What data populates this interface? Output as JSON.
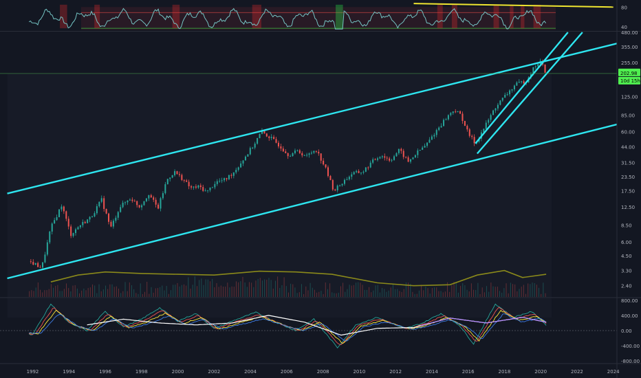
{
  "chart_data": {
    "type": "candlestick",
    "title": "",
    "colors": {
      "background": "#131722",
      "up": "#26a69a",
      "down": "#ef5350",
      "channel": "#2ee6f0",
      "trendline": "#f0e630",
      "price_line": "#4caf50",
      "price_tag": "#50f050",
      "volume_ma": "#8b8a1a",
      "rsi_line": "#74c4c4",
      "macd_signal": "#ffffff"
    },
    "x_axis": {
      "ticks": [
        "1992",
        "1994",
        "1996",
        "1998",
        "2000",
        "2002",
        "2004",
        "2006",
        "2008",
        "2010",
        "2012",
        "2014",
        "2016",
        "2018",
        "2020",
        "2022",
        "2024"
      ],
      "range": [
        1990.2,
        2024.2
      ]
    },
    "rsi_pane": {
      "ticks": [
        "80",
        "40"
      ],
      "overbought": 70,
      "oversold": 30,
      "ylim": [
        25,
        95
      ],
      "trendline": {
        "from": [
          2013.0,
          93
        ],
        "to": [
          2024.0,
          84
        ]
      }
    },
    "price_pane": {
      "scale": "log",
      "ylim": [
        1.9,
        480
      ],
      "ticks": [
        "480.00",
        "355.00",
        "255.00",
        "202.98",
        "125.00",
        "85.00",
        "60.00",
        "44.00",
        "31.50",
        "23.50",
        "17.50",
        "12.50",
        "8.50",
        "6.00",
        "4.50",
        "3.30",
        "2.40"
      ],
      "last_price": "202.98",
      "countdown": "10d 15h",
      "price_series": [
        [
          1991.8,
          4.0
        ],
        [
          1992.5,
          3.5
        ],
        [
          1993.0,
          8.0
        ],
        [
          1993.6,
          13.0
        ],
        [
          1994.1,
          7.0
        ],
        [
          1994.6,
          8.5
        ],
        [
          1995.2,
          10.0
        ],
        [
          1995.8,
          14.5
        ],
        [
          1996.3,
          8.0
        ],
        [
          1996.8,
          12.5
        ],
        [
          1997.4,
          15.0
        ],
        [
          1997.9,
          12.5
        ],
        [
          1998.4,
          16.5
        ],
        [
          1998.9,
          12.0
        ],
        [
          1999.4,
          22.0
        ],
        [
          1999.8,
          26.0
        ],
        [
          2000.2,
          23.0
        ],
        [
          2000.7,
          18.5
        ],
        [
          2001.2,
          19.0
        ],
        [
          2001.6,
          17.0
        ],
        [
          2002.1,
          21.0
        ],
        [
          2002.6,
          22.0
        ],
        [
          2003.1,
          26.0
        ],
        [
          2003.6,
          33.5
        ],
        [
          2004.2,
          46.0
        ],
        [
          2004.6,
          60.0
        ],
        [
          2005.1,
          53.0
        ],
        [
          2005.6,
          45.0
        ],
        [
          2006.1,
          37.0
        ],
        [
          2006.6,
          40.0
        ],
        [
          2007.1,
          36.0
        ],
        [
          2007.6,
          42.0
        ],
        [
          2008.1,
          29.0
        ],
        [
          2008.6,
          17.5
        ],
        [
          2009.1,
          21.0
        ],
        [
          2009.6,
          25.0
        ],
        [
          2010.2,
          26.0
        ],
        [
          2010.7,
          32.0
        ],
        [
          2011.2,
          37.0
        ],
        [
          2011.7,
          33.0
        ],
        [
          2012.2,
          41.0
        ],
        [
          2012.7,
          32.0
        ],
        [
          2013.2,
          39.0
        ],
        [
          2013.7,
          46.0
        ],
        [
          2014.2,
          60.0
        ],
        [
          2014.7,
          77.0
        ],
        [
          2015.2,
          95.0
        ],
        [
          2015.6,
          85.0
        ],
        [
          2016.0,
          58.0
        ],
        [
          2016.4,
          47.0
        ],
        [
          2016.9,
          66.0
        ],
        [
          2017.5,
          100.0
        ],
        [
          2018.0,
          125.0
        ],
        [
          2018.6,
          160.0
        ],
        [
          2019.2,
          175.0
        ],
        [
          2019.7,
          240.0
        ],
        [
          2020.0,
          260.0
        ],
        [
          2020.3,
          202.98
        ]
      ],
      "channels": [
        {
          "name": "long_upper",
          "from": [
            1990.6,
            16.5
          ],
          "to": [
            2024.2,
            380.0
          ]
        },
        {
          "name": "long_lower",
          "from": [
            1990.6,
            2.8
          ],
          "to": [
            2024.2,
            70.0
          ]
        },
        {
          "name": "steep_upper",
          "from": [
            2016.4,
            47.0
          ],
          "to": [
            2021.5,
            480.0
          ]
        },
        {
          "name": "steep_lower",
          "from": [
            2016.5,
            38.0
          ],
          "to": [
            2022.3,
            480.0
          ]
        }
      ],
      "volume_ma": [
        [
          1993.0,
          2.6
        ],
        [
          1994.5,
          3.0
        ],
        [
          1996.0,
          3.2
        ],
        [
          1998.0,
          3.1
        ],
        [
          2000.0,
          3.05
        ],
        [
          2002.0,
          3.0
        ],
        [
          2004.5,
          3.25
        ],
        [
          2006.5,
          3.2
        ],
        [
          2008.5,
          3.05
        ],
        [
          2011.0,
          2.55
        ],
        [
          2013.0,
          2.4
        ],
        [
          2015.0,
          2.45
        ],
        [
          2016.5,
          3.0
        ],
        [
          2018.0,
          3.3
        ],
        [
          2019.0,
          2.85
        ],
        [
          2020.3,
          3.05
        ]
      ]
    },
    "macd_pane": {
      "ticks": [
        "800.00",
        "400.00",
        "0.00",
        "-400.00",
        "-800.00"
      ],
      "ylim": [
        -850,
        850
      ],
      "signal": [
        [
          1993.2,
          250
        ],
        [
          1995.0,
          150
        ],
        [
          1997.0,
          300
        ],
        [
          1999.0,
          200
        ],
        [
          2001.0,
          150
        ],
        [
          2003.0,
          200
        ],
        [
          2005.0,
          400
        ],
        [
          2007.0,
          220
        ],
        [
          2009.0,
          -120
        ],
        [
          2011.0,
          60
        ],
        [
          2013.0,
          80
        ],
        [
          2015.0,
          330
        ],
        [
          2017.0,
          200
        ],
        [
          2019.0,
          350
        ],
        [
          2020.3,
          220
        ]
      ],
      "fast": [
        [
          1992.0,
          -100
        ],
        [
          1993.0,
          700
        ],
        [
          1994.0,
          200
        ],
        [
          1995.0,
          0
        ],
        [
          1996.0,
          500
        ],
        [
          1997.0,
          100
        ],
        [
          1998.0,
          300
        ],
        [
          1999.0,
          600
        ],
        [
          2000.0,
          250
        ],
        [
          2001.0,
          450
        ],
        [
          2002.0,
          50
        ],
        [
          2003.0,
          250
        ],
        [
          2004.3,
          480
        ],
        [
          2005.5,
          200
        ],
        [
          2006.5,
          0
        ],
        [
          2007.5,
          300
        ],
        [
          2008.8,
          -450
        ],
        [
          2009.8,
          150
        ],
        [
          2011.0,
          350
        ],
        [
          2012.5,
          50
        ],
        [
          2013.5,
          200
        ],
        [
          2014.5,
          450
        ],
        [
          2015.5,
          150
        ],
        [
          2016.3,
          -350
        ],
        [
          2017.5,
          700
        ],
        [
          2018.5,
          350
        ],
        [
          2019.5,
          500
        ],
        [
          2020.3,
          150
        ]
      ]
    }
  }
}
